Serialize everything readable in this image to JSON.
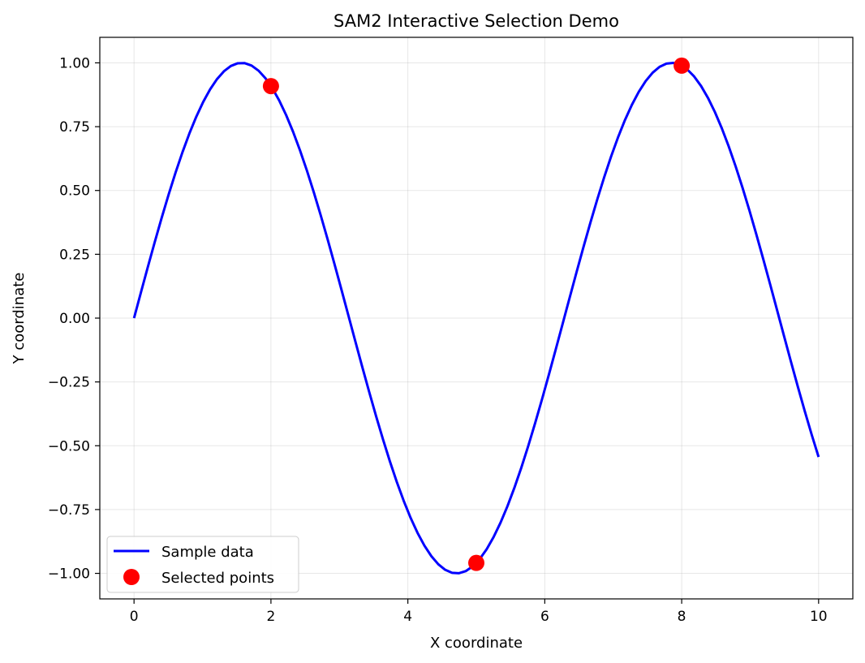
{
  "chart_data": {
    "type": "line",
    "title": "SAM2 Interactive Selection Demo",
    "xlabel": "X coordinate",
    "ylabel": "Y coordinate",
    "xlim": [
      -0.5,
      10.5
    ],
    "ylim": [
      -1.1,
      1.1
    ],
    "x_ticks": [
      0,
      2,
      4,
      6,
      8,
      10
    ],
    "x_tick_labels": [
      "0",
      "2",
      "4",
      "6",
      "8",
      "10"
    ],
    "y_ticks": [
      1.0,
      0.75,
      0.5,
      0.25,
      0.0,
      -0.25,
      -0.5,
      -0.75,
      -1.0
    ],
    "y_tick_labels": [
      "1.00",
      "0.75",
      "0.50",
      "0.25",
      "0.00",
      "−0.25",
      "−0.50",
      "−0.75",
      "−1.00"
    ],
    "grid": true,
    "legend_position": "lower-left",
    "series": [
      {
        "name": "Sample data",
        "kind": "line",
        "color": "#0000ff",
        "function": "sin",
        "x_range": [
          0,
          10
        ],
        "num_points": 100
      },
      {
        "name": "Selected points",
        "kind": "scatter",
        "color": "#ff0000",
        "points": [
          {
            "x": 2,
            "y": 0.909
          },
          {
            "x": 5,
            "y": -0.959
          },
          {
            "x": 8,
            "y": 0.989
          }
        ]
      }
    ]
  }
}
